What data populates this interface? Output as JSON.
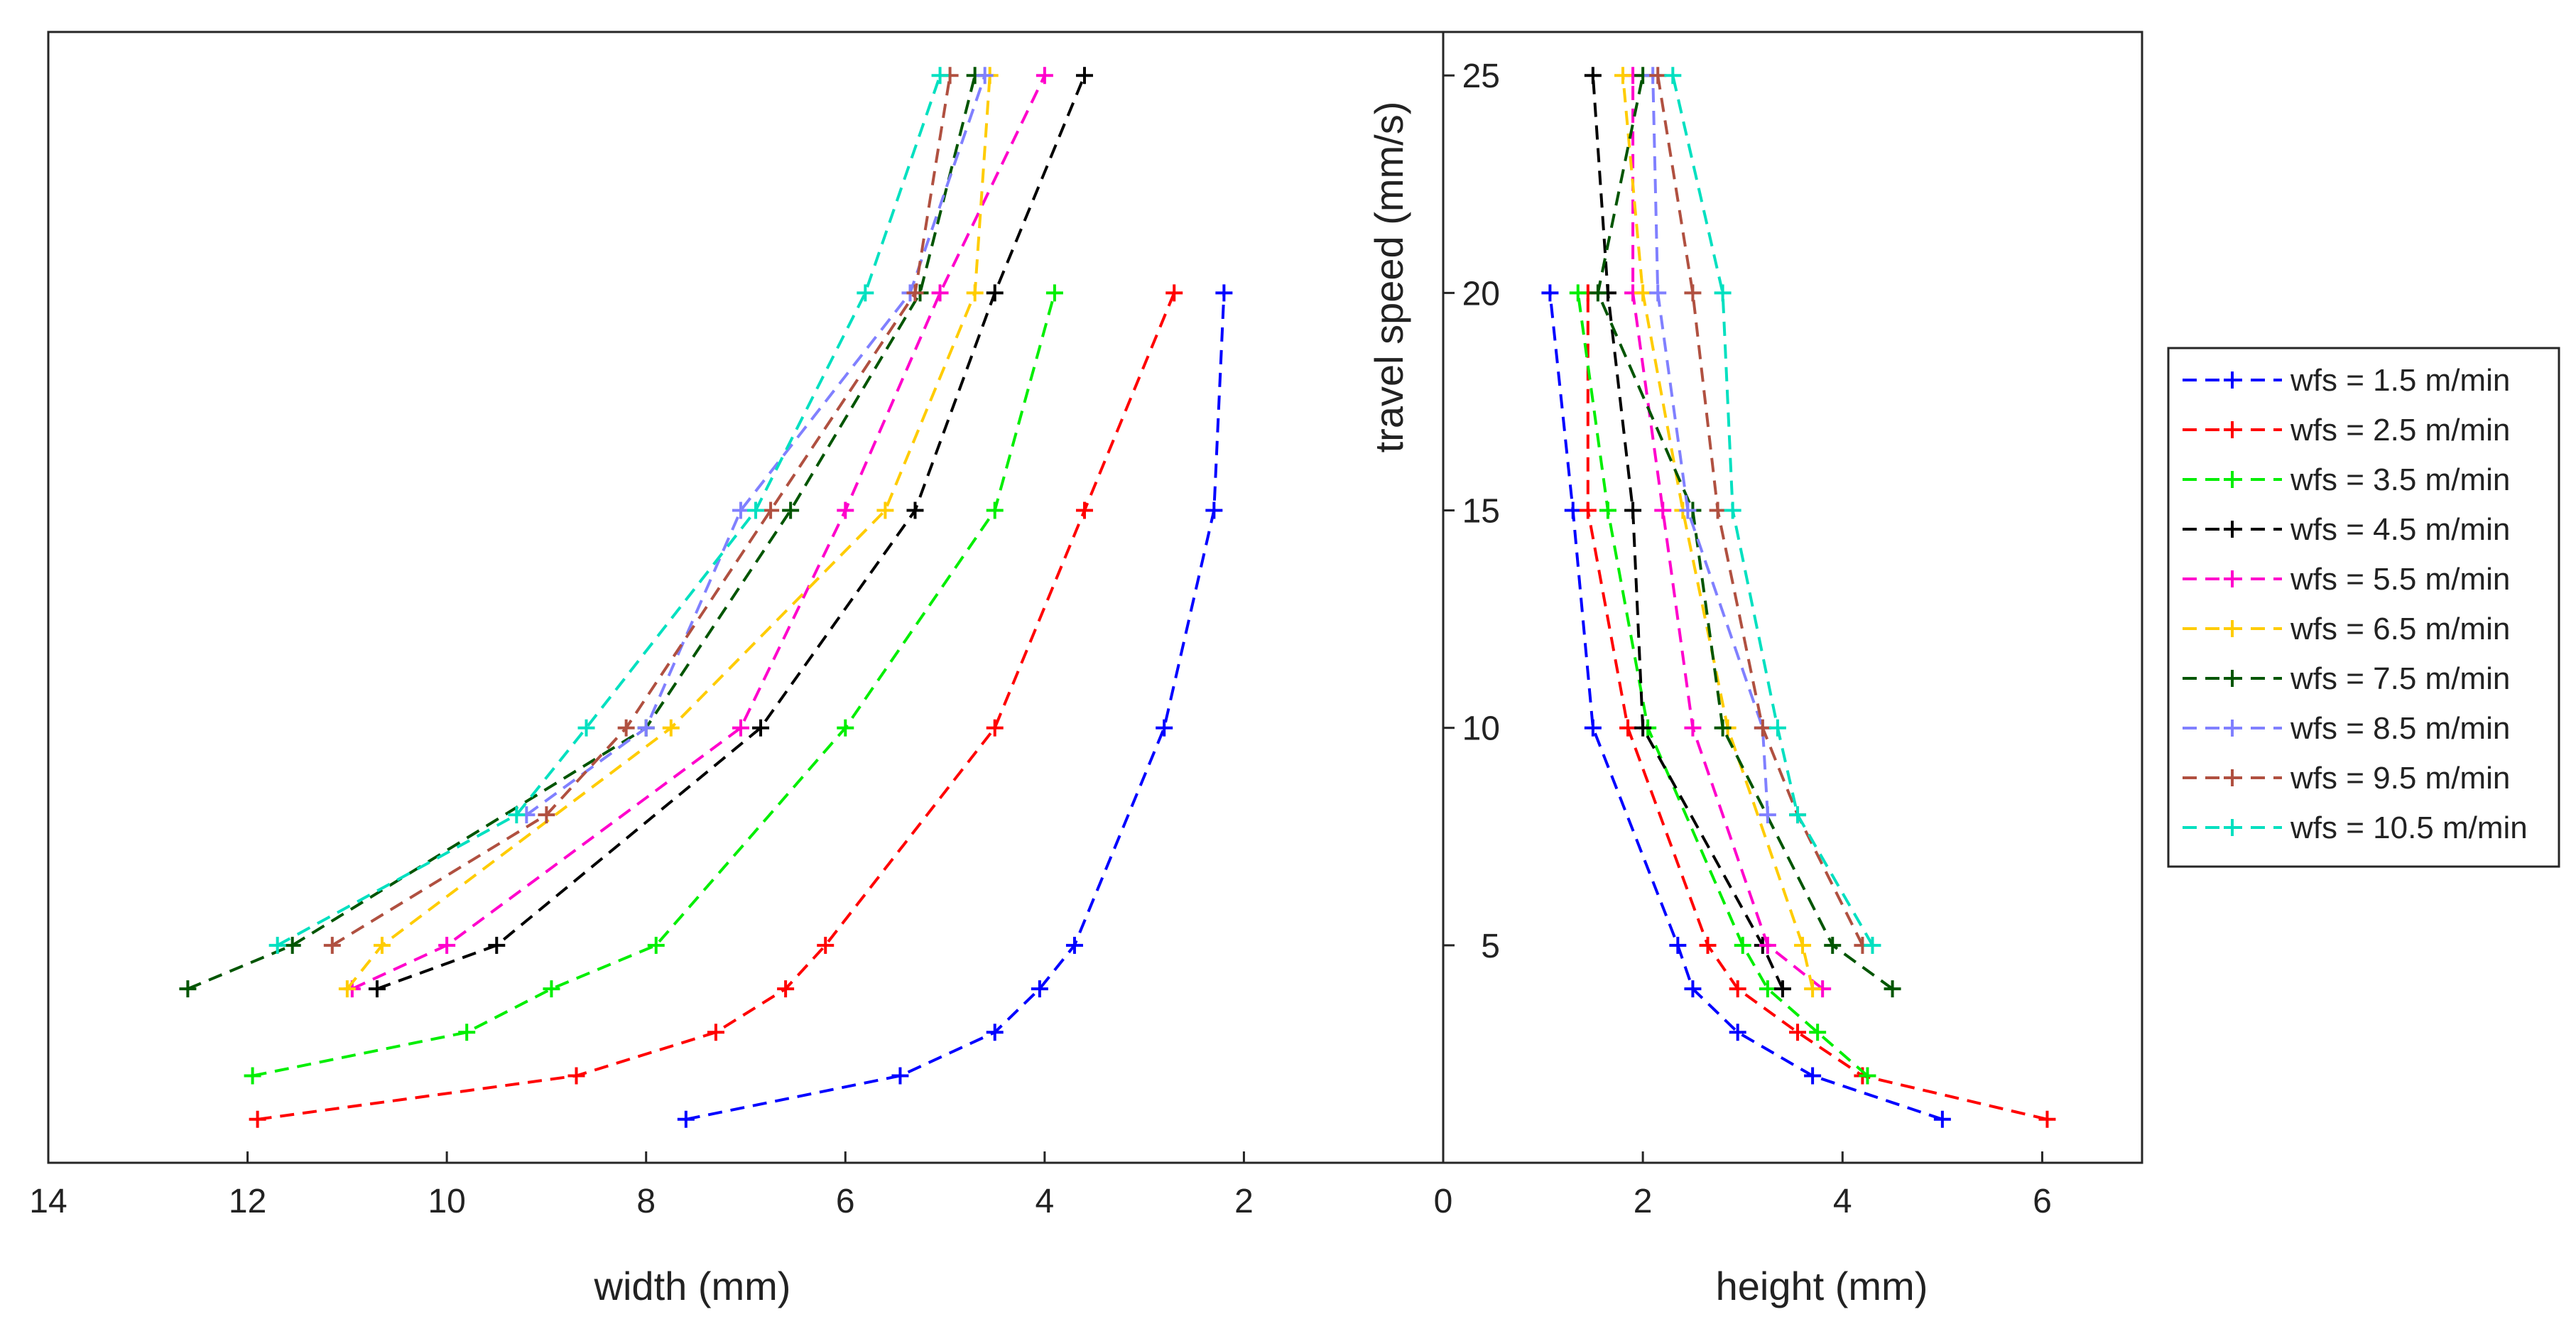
{
  "chart_data": {
    "type": "line",
    "left_panel": {
      "xlabel": "width (mm)",
      "xlim": [
        0,
        14
      ],
      "x_reversed": true,
      "xticks": [
        "14",
        "12",
        "10",
        "8",
        "6",
        "4",
        "2"
      ]
    },
    "right_panel": {
      "xlabel": "height (mm)",
      "ylabel": "travel speed (mm/s)",
      "xlim": [
        0,
        7
      ],
      "xticks": [
        "0",
        "2",
        "4",
        "6"
      ]
    },
    "ylim": [
      0,
      26
    ],
    "yticks": [
      "5",
      "10",
      "15",
      "20",
      "25"
    ],
    "legend_position": "right-outside",
    "series": [
      {
        "name": "wfs = 1.5 m/min",
        "color": "#0000ff",
        "speed": [
          1,
          2,
          3,
          4,
          5,
          10,
          15,
          20
        ],
        "width": [
          7.6,
          5.45,
          4.5,
          4.05,
          3.7,
          2.8,
          2.3,
          2.2
        ],
        "height": [
          5.0,
          3.7,
          2.95,
          2.5,
          2.35,
          1.5,
          1.3,
          1.07
        ]
      },
      {
        "name": "wfs = 2.5 m/min",
        "color": "#ff0000",
        "speed": [
          1,
          2,
          3,
          4,
          5,
          10,
          15,
          20
        ],
        "width": [
          11.9,
          8.7,
          7.3,
          6.6,
          6.2,
          4.5,
          3.6,
          2.7
        ],
        "height": [
          6.05,
          4.2,
          3.55,
          2.95,
          2.65,
          1.85,
          1.45,
          1.45
        ]
      },
      {
        "name": "wfs = 3.5 m/min",
        "color": "#00ee00",
        "speed": [
          2,
          3,
          4,
          5,
          10,
          15,
          20
        ],
        "width": [
          11.95,
          9.8,
          8.95,
          7.9,
          6.0,
          4.5,
          3.9
        ],
        "height": [
          4.25,
          3.75,
          3.25,
          3.0,
          2.05,
          1.65,
          1.35
        ]
      },
      {
        "name": "wfs = 4.5 m/min",
        "color": "#000000",
        "speed": [
          4,
          5,
          10,
          15,
          20,
          25
        ],
        "width": [
          10.7,
          9.5,
          6.85,
          5.3,
          4.5,
          3.6
        ],
        "height": [
          3.4,
          3.2,
          2.0,
          1.9,
          1.65,
          1.5
        ]
      },
      {
        "name": "wfs = 5.5 m/min",
        "color": "#ff00cc",
        "speed": [
          4,
          5,
          10,
          15,
          20,
          25
        ],
        "width": [
          10.95,
          10.0,
          7.05,
          6.0,
          5.05,
          4.0
        ],
        "height": [
          3.8,
          3.25,
          2.5,
          2.2,
          1.9,
          1.9
        ]
      },
      {
        "name": "wfs = 6.5 m/min",
        "color": "#ffcc00",
        "speed": [
          4,
          5,
          10,
          15,
          20,
          25
        ],
        "width": [
          11.0,
          10.65,
          7.75,
          5.6,
          4.7,
          4.55
        ],
        "height": [
          3.7,
          3.6,
          2.85,
          2.4,
          2.0,
          1.8
        ]
      },
      {
        "name": "wfs = 7.5 m/min",
        "color": "#005500",
        "speed": [
          4,
          5,
          10,
          15,
          20,
          25
        ],
        "width": [
          12.6,
          11.55,
          8.0,
          6.55,
          5.25,
          4.7
        ],
        "height": [
          4.5,
          3.9,
          2.8,
          2.5,
          1.55,
          2.0
        ]
      },
      {
        "name": "wfs = 8.5 m/min",
        "color": "#8080ff",
        "speed": [
          8,
          10,
          15,
          20,
          25
        ],
        "width": [
          9.2,
          8.0,
          7.05,
          5.35,
          4.6
        ],
        "height": [
          3.25,
          3.2,
          2.45,
          2.15,
          2.1
        ]
      },
      {
        "name": "wfs = 9.5 m/min",
        "color": "#b05040",
        "speed": [
          5,
          8,
          10,
          15,
          20,
          25
        ],
        "width": [
          11.15,
          9.0,
          8.2,
          6.75,
          5.3,
          4.95
        ],
        "height": [
          4.2,
          3.55,
          3.2,
          2.75,
          2.5,
          2.15
        ]
      },
      {
        "name": "wfs = 10.5 m/min",
        "color": "#00e0c0",
        "speed": [
          5,
          8,
          10,
          15,
          20,
          25
        ],
        "width": [
          11.7,
          9.3,
          8.6,
          6.9,
          5.8,
          5.05
        ],
        "height": [
          4.3,
          3.55,
          3.35,
          2.9,
          2.8,
          2.3
        ]
      }
    ]
  }
}
